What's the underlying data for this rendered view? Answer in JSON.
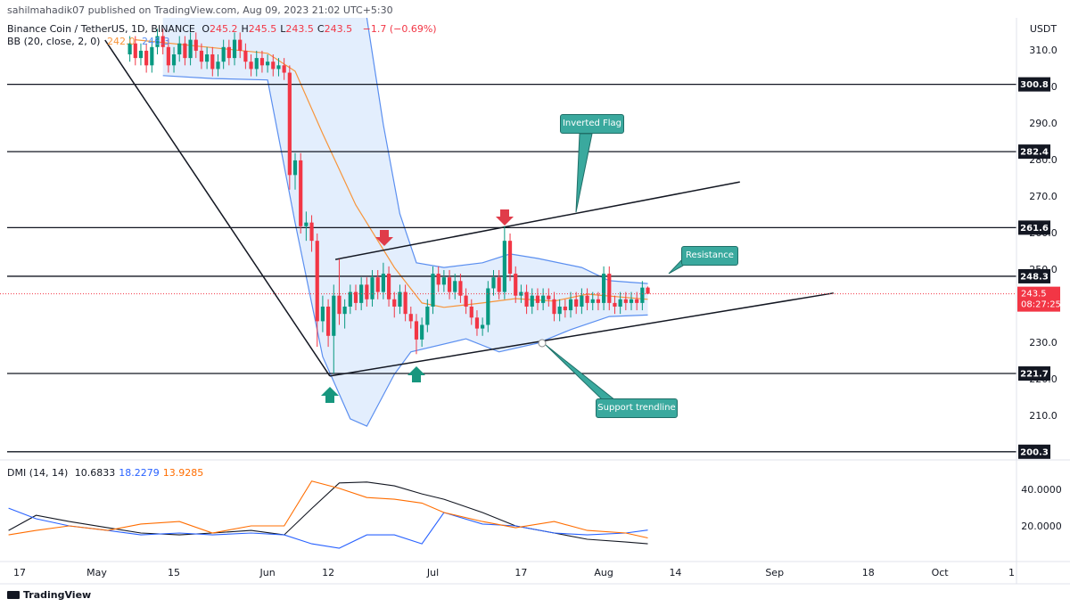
{
  "header": "sahilmahadik07 published on TradingView.com, Aug 09, 2023 21:02 UTC+5:30",
  "footer": "TradingView",
  "chart_data": [
    {
      "type": "candlestick",
      "title": "Binance Coin / TetherUS, 1D, BINANCE",
      "ohlc_labels": [
        "O",
        "H",
        "L",
        "C"
      ],
      "change": "−1.7 (−0.69%)",
      "currency": "USDT",
      "countdown": "08:27:25",
      "x": [
        20,
        21,
        22,
        23,
        24,
        25,
        26,
        27,
        28,
        29,
        30,
        31,
        32,
        33,
        34,
        35,
        36,
        37,
        38,
        39,
        40,
        41,
        42,
        43,
        44,
        45,
        46,
        47,
        48,
        49,
        50,
        51,
        52,
        53,
        54,
        55,
        56,
        57,
        58,
        59,
        60,
        61,
        62,
        63,
        64,
        65,
        66,
        67,
        68,
        69,
        70,
        71,
        72,
        73,
        74,
        75,
        76,
        77,
        78,
        79,
        80,
        81,
        82,
        83,
        84,
        85,
        86,
        87,
        88,
        89,
        90,
        91,
        92,
        93,
        94,
        95,
        96,
        97,
        98,
        99,
        100,
        101,
        102,
        103,
        104,
        105,
        106,
        107,
        108,
        109,
        110,
        111,
        112,
        113,
        114
      ],
      "open": [
        309,
        312,
        308,
        310,
        306,
        311,
        314,
        311,
        306,
        309,
        312,
        308,
        313,
        310,
        307,
        309,
        305,
        307,
        311,
        308,
        313,
        310,
        307,
        305,
        308,
        306,
        307,
        305,
        306,
        304,
        276,
        280,
        262,
        263,
        258,
        236,
        240,
        232,
        243,
        238,
        240,
        244,
        241,
        246,
        242,
        248,
        244,
        249,
        242,
        240,
        244,
        238,
        236,
        231,
        235,
        240,
        249,
        246,
        248,
        244,
        247,
        243,
        240,
        237,
        234,
        235,
        245,
        248,
        244,
        258,
        249,
        243,
        244,
        240,
        243,
        241,
        243,
        242,
        238,
        240,
        239,
        242,
        240,
        243,
        241,
        242,
        241,
        249,
        241,
        240,
        242,
        241,
        242,
        241,
        245.2
      ],
      "high": [
        314,
        314,
        312,
        312,
        313,
        316,
        316,
        313,
        311,
        314,
        314,
        315,
        315,
        312,
        311,
        311,
        309,
        313,
        313,
        315,
        315,
        312,
        309,
        310,
        310,
        309,
        309,
        308,
        308,
        306,
        282,
        282,
        266,
        265,
        260,
        243,
        242,
        246,
        253,
        242,
        246,
        246,
        248,
        248,
        250,
        250,
        252,
        251,
        244,
        246,
        246,
        240,
        238,
        237,
        242,
        251,
        251,
        250,
        250,
        249,
        249,
        245,
        242,
        239,
        237,
        247,
        250,
        250,
        262,
        260,
        251,
        246,
        246,
        245,
        245,
        245,
        245,
        244,
        242,
        242,
        244,
        244,
        245,
        245,
        244,
        244,
        251,
        251,
        243,
        244,
        244,
        244,
        244,
        247,
        245.5
      ],
      "low": [
        307,
        306,
        306,
        304,
        304,
        309,
        309,
        304,
        304,
        307,
        306,
        306,
        308,
        305,
        305,
        303,
        303,
        305,
        306,
        306,
        308,
        305,
        303,
        303,
        304,
        304,
        303,
        303,
        302,
        272,
        272,
        260,
        258,
        255,
        229,
        233,
        229,
        221.7,
        235,
        234,
        238,
        239,
        239,
        240,
        240,
        242,
        242,
        240,
        237,
        238,
        236,
        234,
        227,
        229,
        233,
        238,
        244,
        244,
        242,
        242,
        241,
        238,
        235,
        232,
        232,
        233,
        243,
        242,
        242,
        247,
        241,
        241,
        238,
        238,
        239,
        239,
        240,
        236,
        236,
        237,
        237,
        238,
        238,
        239,
        239,
        239,
        239,
        239,
        238,
        238,
        239,
        239,
        239,
        239,
        243.5
      ],
      "close": [
        312,
        308,
        310,
        306,
        311,
        314,
        311,
        306,
        309,
        312,
        308,
        313,
        310,
        307,
        309,
        305,
        307,
        311,
        308,
        313,
        310,
        307,
        305,
        308,
        306,
        307,
        305,
        306,
        304,
        276,
        280,
        262,
        263,
        258,
        236,
        240,
        232,
        243,
        238,
        240,
        244,
        241,
        246,
        242,
        248,
        244,
        249,
        242,
        240,
        244,
        238,
        236,
        231,
        235,
        240,
        249,
        246,
        248,
        244,
        247,
        243,
        240,
        237,
        234,
        235,
        245,
        248,
        244,
        258,
        249,
        243,
        244,
        240,
        243,
        241,
        243,
        242,
        238,
        240,
        239,
        242,
        240,
        243,
        241,
        242,
        241,
        249,
        241,
        240,
        242,
        241,
        242,
        241,
        245.2,
        243.5
      ],
      "up_color": "#089981",
      "down_color": "#f23645",
      "xlim": [
        -3.56,
        180.9
      ],
      "ylim": [
        198.3,
        319
      ],
      "yticks": [
        {
          "value": 210,
          "label": "210.0"
        },
        {
          "value": 220,
          "label": "220.0"
        },
        {
          "value": 230,
          "label": "230.0"
        },
        {
          "value": 240,
          "label": "240.0"
        },
        {
          "value": 250,
          "label": "250.0"
        },
        {
          "value": 260,
          "label": "260.0"
        },
        {
          "value": 270,
          "label": "270.0"
        },
        {
          "value": 280,
          "label": "280.0"
        },
        {
          "value": 290,
          "label": "290.0"
        },
        {
          "value": 300,
          "label": "300.0"
        },
        {
          "value": 310,
          "label": "310.0"
        }
      ],
      "levels": [
        300.8,
        282.4,
        261.6,
        248.3,
        221.7,
        200.3
      ],
      "bollinger": {
        "name": "BB (20, close, 2, 0)",
        "legend_labels": [
          "242.0",
          "246.3"
        ],
        "fill": "#e3eefd",
        "series": [
          {
            "color": "#f7953b",
            "x": [
              21,
              45,
              50,
              55,
              61,
              68,
              73,
              77,
              84,
              90,
              97,
              103,
              114
            ],
            "values": [
              313,
              309.3,
              304.4,
              287.3,
              267.8,
              250.7,
              241,
              239.8,
              241,
              242.2,
              241.5,
              243.4,
              242
            ]
          },
          {
            "color": "#5b8ff0",
            "x": [
              63,
              66,
              69,
              72,
              77,
              84,
              89,
              94,
              102,
              107,
              114
            ],
            "values": [
              319,
              289.8,
              265.4,
              252,
              250.7,
              252,
              254.4,
              253.2,
              250.7,
              247.1,
              246.3
            ]
          },
          {
            "color": "#5b8ff0",
            "x": [
              26,
              35,
              45,
              50,
              55,
              60,
              63,
              68,
              71,
              81,
              87,
              94,
              100,
              107,
              114
            ],
            "values": [
              303.2,
              302.4,
              302,
              262.9,
              226.3,
              209.3,
              207.3,
              221.5,
              227.6,
              231.2,
              227.6,
              230,
              233.7,
              237.3,
              237.7
            ]
          }
        ]
      },
      "trendlines": [
        [
          [
            15.5,
            312.9
          ],
          [
            56.3,
            221.0
          ]
        ],
        [
          [
            56.3,
            221.0
          ],
          [
            147.7,
            243.7
          ]
        ],
        [
          [
            57.3,
            252.9
          ],
          [
            130.7,
            274.1
          ]
        ]
      ],
      "annotations": [
        "Inverted Flag",
        "Resistance",
        "Support trendline"
      ]
    },
    {
      "type": "line",
      "title": "DMI (14, 14)",
      "x": [
        -2,
        3,
        9,
        16,
        22,
        29,
        35,
        42,
        48,
        53,
        58,
        63,
        68,
        73,
        77,
        84,
        90,
        97,
        103,
        110,
        114
      ],
      "series": [
        {
          "color": "#131722",
          "legend_value": 10.6833,
          "values": [
            18,
            26.3,
            22.9,
            19.5,
            16.6,
            15.6,
            16.6,
            18,
            15.6,
            30,
            44,
            44.5,
            42.4,
            38,
            35.1,
            27.8,
            20.5,
            16.6,
            13.2,
            11.7,
            10.7
          ]
        },
        {
          "color": "#2962ff",
          "legend_value": 18.2279,
          "values": [
            30.2,
            24.4,
            20.5,
            18,
            15.6,
            16.6,
            15.6,
            16.6,
            15.6,
            10.7,
            8.3,
            15.6,
            15.6,
            10.7,
            27.8,
            21.5,
            20.5,
            16.6,
            15.6,
            16.6,
            18.2
          ]
        },
        {
          "color": "#ff6d00",
          "legend_value": 13.9285,
          "values": [
            15.6,
            18,
            20.5,
            18,
            21.5,
            22.9,
            16.6,
            20.5,
            20.5,
            45,
            41,
            36,
            35.1,
            33,
            27.8,
            22.9,
            19.5,
            22.9,
            18,
            16.6,
            13.9
          ]
        }
      ],
      "xlim": [
        -3.56,
        180.9
      ],
      "ylim": [
        1,
        55.6
      ],
      "yticks": [
        {
          "value": 20,
          "label": "20.0000"
        },
        {
          "value": 40,
          "label": "40.0000"
        }
      ],
      "xticks": [
        {
          "value": 0,
          "label": "17"
        },
        {
          "value": 14,
          "label": "May"
        },
        {
          "value": 28,
          "label": "15"
        },
        {
          "value": 45,
          "label": "Jun"
        },
        {
          "value": 56,
          "label": "12"
        },
        {
          "value": 75,
          "label": "Jul"
        },
        {
          "value": 91,
          "label": "17"
        },
        {
          "value": 106,
          "label": "Aug"
        },
        {
          "value": 119,
          "label": "14"
        },
        {
          "value": 137,
          "label": "Sep"
        },
        {
          "value": 154,
          "label": "18"
        },
        {
          "value": 167,
          "label": "Oct"
        },
        {
          "value": 180,
          "label": "1"
        }
      ]
    }
  ]
}
